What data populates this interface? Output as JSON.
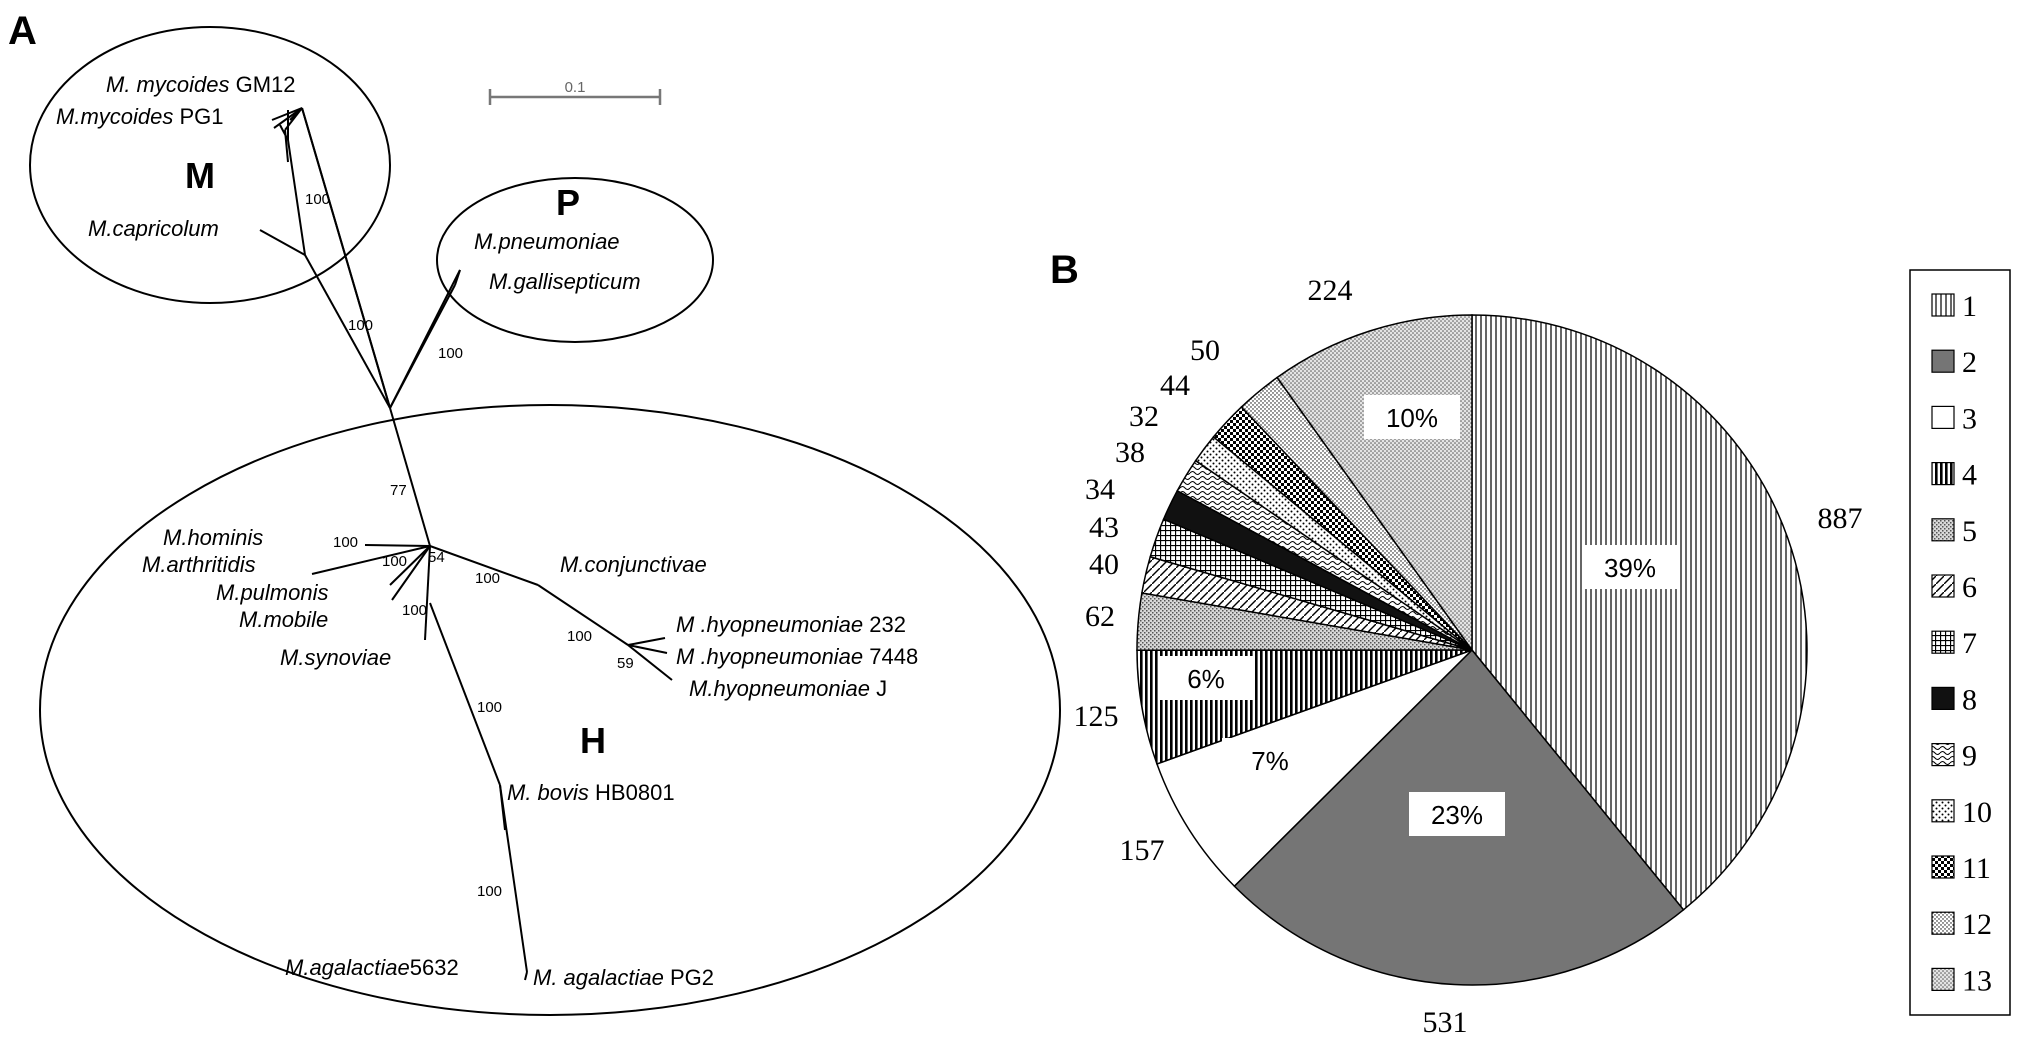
{
  "panel_a": {
    "label": "A",
    "scale_bar": "0.1",
    "groups": [
      {
        "name": "M"
      },
      {
        "name": "P"
      },
      {
        "name": "H"
      }
    ],
    "taxa": [
      {
        "species": "M. mycoides",
        "strain": "GM12"
      },
      {
        "species": "M.mycoides",
        "strain": "PG1"
      },
      {
        "species": "M.capricolum",
        "strain": ""
      },
      {
        "species": "M.pneumoniae",
        "strain": ""
      },
      {
        "species": "M.gallisepticum",
        "strain": ""
      },
      {
        "species": "M.hominis",
        "strain": ""
      },
      {
        "species": "M.arthritidis",
        "strain": ""
      },
      {
        "species": "M.pulmonis",
        "strain": ""
      },
      {
        "species": "M.mobile",
        "strain": ""
      },
      {
        "species": "M.synoviae",
        "strain": ""
      },
      {
        "species": "M.conjunctivae",
        "strain": ""
      },
      {
        "species": "M .hyopneumoniae",
        "strain": "232"
      },
      {
        "species": "M .hyopneumoniae",
        "strain": "7448"
      },
      {
        "species": "M.hyopneumoniae",
        "strain": "J"
      },
      {
        "species": "M. bovis",
        "strain": "HB0801"
      },
      {
        "species": "M.agalactiae",
        "strain": "5632"
      },
      {
        "species": "M. agalactiae",
        "strain": "PG2"
      }
    ],
    "bootstrap": [
      "100",
      "100",
      "100",
      "77",
      "100",
      "100",
      "54",
      "100",
      "100",
      "100",
      "59",
      "100",
      "100"
    ]
  },
  "chart_data": {
    "type": "pie",
    "label": "B",
    "categories": [
      "1",
      "2",
      "3",
      "4",
      "5",
      "6",
      "7",
      "8",
      "9",
      "10",
      "11",
      "12",
      "13"
    ],
    "values": [
      887,
      531,
      157,
      125,
      62,
      40,
      43,
      34,
      38,
      32,
      44,
      50,
      224
    ],
    "value_labels": [
      "887",
      "531",
      "157",
      "125",
      "62",
      "40",
      "43",
      "34",
      "38",
      "32",
      "44",
      "50",
      "224"
    ],
    "percent_labels": [
      "39%",
      "23%",
      "7%",
      "6%",
      "",
      "",
      "",
      "",
      "",
      "",
      "",
      "",
      "10%"
    ],
    "legend": {
      "placement": "right",
      "entries": [
        "1",
        "2",
        "3",
        "4",
        "5",
        "6",
        "7",
        "8",
        "9",
        "10",
        "11",
        "12",
        "13"
      ]
    },
    "start_angle_deg": 0,
    "direction": "clockwise",
    "fills": [
      "vlines-fine",
      "solid-gray",
      "white",
      "vlines-bold",
      "dots-light",
      "diag-stripes",
      "grid",
      "solid-black",
      "waves",
      "dots-sparse",
      "checker",
      "dots-fine",
      "dots-medium"
    ],
    "colors": {
      "gray": "#757575",
      "black": "#111111",
      "line": "#000000"
    }
  }
}
